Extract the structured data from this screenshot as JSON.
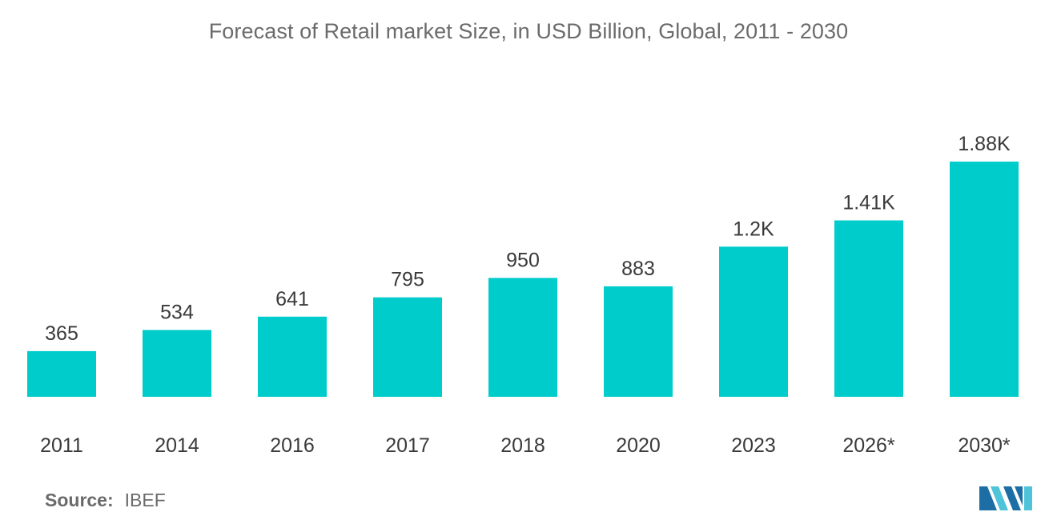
{
  "chart_data": {
    "type": "bar",
    "title": "Forecast of Retail market Size, in USD Billion, Global, 2011 - 2030",
    "xlabel": "",
    "ylabel": "",
    "categories": [
      "2011",
      "2014",
      "2016",
      "2017",
      "2018",
      "2020",
      "2023",
      "2026*",
      "2030*"
    ],
    "values": [
      365,
      534,
      641,
      795,
      950,
      883,
      1200,
      1410,
      1880
    ],
    "data_labels": [
      "365",
      "534",
      "641",
      "795",
      "950",
      "883",
      "1.2K",
      "1.41K",
      "1.88K"
    ],
    "ylim": [
      0,
      1880
    ],
    "grid": false,
    "legend": "none",
    "bar_color": "#00cccc"
  },
  "source": {
    "key": "Source:",
    "value": "IBEF"
  },
  "brand": {
    "logo_icon": "mordor-intelligence-logo-icon",
    "colors": [
      "#1c6ea4",
      "#4fc3d9"
    ]
  }
}
